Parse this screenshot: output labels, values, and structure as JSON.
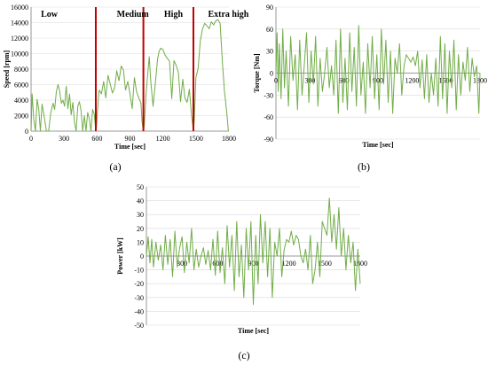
{
  "colors": {
    "series": "#70ad47",
    "divider": "#c00000",
    "grid": "#d9d9d9",
    "axis": "#7f7f7f"
  },
  "chart_data": [
    {
      "id": "a",
      "type": "line",
      "caption": "(a)",
      "xlabel": "Time [sec]",
      "ylabel": "Speed [rpm]",
      "xlim": [
        0,
        1800
      ],
      "ylim": [
        0,
        16000
      ],
      "xticks": [
        0,
        300,
        600,
        900,
        1200,
        1500,
        1800
      ],
      "yticks": [
        0,
        2000,
        4000,
        6000,
        8000,
        10000,
        12000,
        14000,
        16000
      ],
      "grid": "horizontal",
      "zone_labels": [
        "Low",
        "Medium",
        "High",
        "Extra high"
      ],
      "zone_label_x": [
        90,
        780,
        1210,
        1610
      ],
      "dividers": [
        589,
        1022,
        1477
      ],
      "x": [
        0,
        10,
        25,
        40,
        55,
        70,
        85,
        100,
        120,
        140,
        160,
        180,
        200,
        215,
        230,
        245,
        260,
        275,
        290,
        305,
        320,
        335,
        350,
        365,
        380,
        395,
        410,
        425,
        440,
        455,
        470,
        485,
        500,
        515,
        530,
        545,
        560,
        575,
        589,
        595,
        610,
        620,
        640,
        660,
        680,
        700,
        720,
        740,
        760,
        780,
        800,
        820,
        840,
        860,
        880,
        900,
        920,
        940,
        960,
        980,
        1000,
        1010,
        1022,
        1030,
        1045,
        1060,
        1075,
        1090,
        1110,
        1130,
        1150,
        1165,
        1180,
        1200,
        1220,
        1240,
        1260,
        1280,
        1300,
        1320,
        1340,
        1360,
        1380,
        1400,
        1420,
        1440,
        1460,
        1477,
        1485,
        1500,
        1520,
        1540,
        1560,
        1580,
        1600,
        1620,
        1640,
        1660,
        1680,
        1700,
        1720,
        1740,
        1760,
        1780,
        1795
      ],
      "y": [
        0,
        4800,
        1500,
        0,
        4100,
        2800,
        0,
        3500,
        1800,
        0,
        0,
        2400,
        3600,
        2800,
        5100,
        6000,
        5200,
        3600,
        4000,
        3200,
        5800,
        2900,
        4800,
        2100,
        3700,
        1200,
        0,
        3200,
        3800,
        2600,
        0,
        2000,
        0,
        2400,
        1600,
        0,
        2800,
        2200,
        0,
        500,
        3800,
        5300,
        4800,
        6400,
        4300,
        7200,
        6100,
        4900,
        5600,
        7800,
        6500,
        8400,
        7900,
        5300,
        6400,
        4800,
        2900,
        6900,
        5100,
        4300,
        3600,
        1200,
        0,
        800,
        4600,
        7100,
        9600,
        6300,
        3200,
        6100,
        9200,
        10300,
        10700,
        10500,
        9800,
        9400,
        9000,
        4200,
        9100,
        8500,
        7600,
        3800,
        6700,
        4300,
        3700,
        5400,
        2000,
        0,
        1500,
        6900,
        8100,
        11700,
        13200,
        13900,
        13600,
        13200,
        14100,
        13700,
        14200,
        14400,
        13900,
        9000,
        5100,
        2500,
        0
      ]
    },
    {
      "id": "b",
      "type": "line",
      "caption": "(b)",
      "xlabel": "Time [sec]",
      "ylabel": "Torque [Nm]",
      "xlim": [
        0,
        1800
      ],
      "ylim": [
        -90,
        90
      ],
      "xticks": [
        0,
        300,
        600,
        900,
        1200,
        1500,
        1800
      ],
      "yticks": [
        -90,
        -60,
        -30,
        0,
        30,
        60,
        90
      ],
      "grid": "horizontal",
      "x": [
        0,
        10,
        20,
        30,
        45,
        60,
        75,
        90,
        110,
        130,
        150,
        170,
        190,
        210,
        230,
        250,
        270,
        290,
        310,
        330,
        350,
        370,
        390,
        410,
        430,
        450,
        470,
        490,
        510,
        530,
        550,
        570,
        590,
        610,
        630,
        650,
        670,
        690,
        710,
        730,
        750,
        770,
        790,
        810,
        830,
        850,
        870,
        890,
        910,
        930,
        950,
        970,
        990,
        1010,
        1030,
        1050,
        1070,
        1090,
        1110,
        1130,
        1150,
        1170,
        1190,
        1210,
        1230,
        1250,
        1270,
        1290,
        1310,
        1330,
        1350,
        1370,
        1390,
        1410,
        1430,
        1450,
        1470,
        1490,
        1510,
        1530,
        1550,
        1570,
        1590,
        1610,
        1630,
        1650,
        1670,
        1690,
        1710,
        1730,
        1750,
        1770,
        1790,
        1800
      ],
      "y": [
        0,
        55,
        -25,
        40,
        -35,
        60,
        -20,
        30,
        -45,
        50,
        -10,
        25,
        -50,
        45,
        -30,
        10,
        55,
        -40,
        30,
        -15,
        50,
        -45,
        20,
        -25,
        0,
        35,
        -20,
        10,
        -30,
        45,
        -55,
        60,
        -40,
        20,
        -50,
        55,
        -25,
        35,
        -45,
        65,
        -30,
        15,
        -55,
        40,
        -20,
        50,
        -35,
        25,
        -50,
        60,
        -15,
        45,
        -40,
        30,
        -55,
        20,
        0,
        40,
        -30,
        10,
        25,
        20,
        15,
        22,
        10,
        30,
        -20,
        18,
        -35,
        25,
        -40,
        0,
        -30,
        20,
        -45,
        50,
        -35,
        40,
        -55,
        30,
        -20,
        45,
        -50,
        25,
        -30,
        15,
        -10,
        35,
        -25,
        20,
        -5,
        10,
        -55,
        0
      ]
    },
    {
      "id": "c",
      "type": "line",
      "caption": "(c)",
      "xlabel": "Time [sec]",
      "ylabel": "Power [kW]",
      "xlim": [
        0,
        1800
      ],
      "ylim": [
        -50,
        50
      ],
      "xticks": [
        300,
        600,
        900,
        1200,
        1500,
        1800
      ],
      "yticks": [
        -50,
        -40,
        -30,
        -20,
        -10,
        0,
        10,
        20,
        30,
        40,
        50
      ],
      "grid": "horizontal",
      "x": [
        0,
        15,
        30,
        45,
        60,
        80,
        100,
        120,
        140,
        160,
        180,
        200,
        220,
        240,
        260,
        280,
        300,
        320,
        340,
        360,
        380,
        400,
        420,
        440,
        460,
        480,
        500,
        520,
        540,
        560,
        580,
        600,
        620,
        640,
        660,
        680,
        700,
        720,
        740,
        760,
        780,
        800,
        820,
        840,
        860,
        880,
        900,
        920,
        940,
        960,
        980,
        1000,
        1020,
        1040,
        1060,
        1080,
        1100,
        1120,
        1140,
        1160,
        1180,
        1200,
        1220,
        1240,
        1260,
        1280,
        1300,
        1320,
        1340,
        1360,
        1380,
        1400,
        1420,
        1440,
        1460,
        1480,
        1500,
        1520,
        1540,
        1560,
        1580,
        1600,
        1620,
        1640,
        1660,
        1680,
        1700,
        1720,
        1740,
        1760,
        1780,
        1800
      ],
      "y": [
        0,
        14,
        -5,
        12,
        -8,
        10,
        -3,
        8,
        -10,
        15,
        -6,
        12,
        -15,
        18,
        -8,
        6,
        14,
        -12,
        10,
        -5,
        20,
        -10,
        5,
        -8,
        0,
        6,
        -6,
        4,
        -10,
        12,
        -14,
        18,
        -12,
        6,
        -20,
        22,
        -8,
        15,
        -25,
        25,
        -15,
        8,
        -30,
        20,
        -10,
        25,
        -35,
        15,
        -20,
        30,
        -5,
        25,
        -15,
        20,
        -30,
        10,
        0,
        20,
        -15,
        5,
        12,
        10,
        18,
        8,
        15,
        12,
        0,
        -5,
        5,
        -10,
        15,
        -20,
        -10,
        10,
        -15,
        25,
        20,
        15,
        42,
        10,
        30,
        5,
        35,
        0,
        20,
        -10,
        15,
        -5,
        10,
        -25,
        5,
        -20
      ]
    }
  ]
}
